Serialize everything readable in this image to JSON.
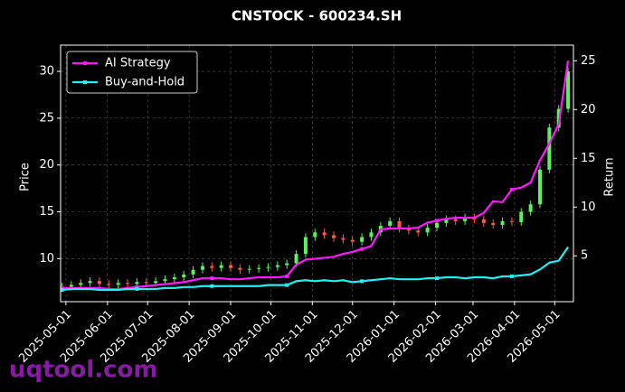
{
  "chart_data": {
    "type": "candlestick",
    "title": "CNSTOCK - 600234.SH",
    "ylabel": "Price",
    "y2label": "Return",
    "watermark": "uqtool.com",
    "x": [
      "2025-04-28",
      "2025-05-05",
      "2025-05-12",
      "2025-05-19",
      "2025-05-26",
      "2025-06-02",
      "2025-06-09",
      "2025-06-16",
      "2025-06-23",
      "2025-06-30",
      "2025-07-07",
      "2025-07-14",
      "2025-07-21",
      "2025-07-28",
      "2025-08-04",
      "2025-08-11",
      "2025-08-18",
      "2025-08-25",
      "2025-09-01",
      "2025-09-08",
      "2025-09-15",
      "2025-09-22",
      "2025-09-29",
      "2025-10-06",
      "2025-10-13",
      "2025-10-20",
      "2025-10-27",
      "2025-11-03",
      "2025-11-10",
      "2025-11-17",
      "2025-11-24",
      "2025-12-01",
      "2025-12-08",
      "2025-12-15",
      "2025-12-22",
      "2025-12-29",
      "2026-01-05",
      "2026-01-12",
      "2026-01-19",
      "2026-01-26",
      "2026-02-02",
      "2026-02-09",
      "2026-02-16",
      "2026-02-23",
      "2026-03-02",
      "2026-03-09",
      "2026-03-16",
      "2026-03-23",
      "2026-03-30",
      "2026-04-06",
      "2026-04-13",
      "2026-04-20",
      "2026-04-27",
      "2026-05-04",
      "2026-05-11"
    ],
    "open": [
      6.9,
      7.0,
      7.2,
      7.4,
      7.6,
      7.3,
      7.2,
      7.4,
      7.3,
      7.5,
      7.4,
      7.6,
      7.8,
      8.0,
      8.3,
      8.8,
      9.2,
      9.0,
      9.3,
      9.0,
      8.8,
      8.9,
      9.0,
      9.1,
      9.3,
      9.5,
      10.5,
      12.3,
      12.8,
      12.5,
      12.2,
      12.0,
      11.8,
      12.3,
      12.8,
      13.5,
      14.0,
      13.2,
      13.0,
      12.8,
      13.3,
      13.8,
      14.2,
      14.0,
      14.4,
      14.2,
      13.8,
      13.6,
      14.0,
      13.9,
      15.0,
      15.8,
      19.5,
      24.0,
      26.0
    ],
    "high": [
      7.4,
      7.6,
      7.8,
      8.0,
      8.0,
      7.7,
      7.8,
      7.8,
      7.9,
      7.9,
      8.0,
      8.2,
      8.4,
      8.7,
      9.2,
      9.6,
      9.6,
      9.7,
      9.7,
      9.4,
      9.3,
      9.4,
      9.5,
      9.7,
      9.9,
      10.9,
      12.7,
      13.2,
      13.2,
      12.9,
      12.6,
      12.4,
      12.7,
      13.2,
      13.9,
      14.4,
      14.4,
      13.6,
      13.4,
      13.7,
      14.2,
      14.6,
      14.6,
      14.8,
      14.8,
      14.6,
      14.2,
      14.4,
      14.4,
      15.4,
      16.2,
      19.9,
      24.4,
      26.4,
      30.4
    ],
    "low": [
      6.5,
      6.6,
      6.8,
      7.0,
      6.9,
      6.8,
      6.8,
      6.9,
      6.9,
      7.0,
      7.0,
      7.2,
      7.4,
      7.6,
      7.9,
      8.4,
      8.6,
      8.6,
      8.6,
      8.4,
      8.4,
      8.5,
      8.6,
      8.7,
      8.9,
      9.1,
      10.1,
      11.9,
      12.1,
      11.8,
      11.6,
      11.4,
      11.4,
      11.9,
      12.4,
      13.1,
      12.8,
      12.6,
      12.4,
      12.4,
      12.9,
      13.4,
      13.6,
      13.6,
      13.8,
      13.4,
      13.2,
      13.2,
      13.5,
      13.5,
      14.6,
      15.4,
      19.1,
      23.6,
      25.6
    ],
    "close": [
      7.0,
      7.2,
      7.4,
      7.6,
      7.3,
      7.2,
      7.4,
      7.3,
      7.5,
      7.4,
      7.6,
      7.8,
      8.0,
      8.3,
      8.8,
      9.2,
      9.0,
      9.3,
      9.0,
      8.8,
      8.9,
      9.0,
      9.1,
      9.3,
      9.5,
      10.5,
      12.3,
      12.8,
      12.5,
      12.2,
      12.0,
      11.8,
      12.3,
      12.8,
      13.5,
      14.0,
      13.2,
      13.0,
      12.8,
      13.3,
      13.8,
      14.2,
      14.0,
      14.4,
      14.2,
      13.8,
      13.6,
      14.0,
      13.9,
      15.0,
      15.8,
      19.5,
      24.0,
      26.0,
      30.0
    ],
    "up_color": "#5cf25c",
    "down_color": "#ff5a4a",
    "series": [
      {
        "name": "AI Strategy",
        "color": "#ff1aff",
        "axis": "y2",
        "values": [
          1.7,
          1.7,
          1.7,
          1.7,
          1.7,
          1.6,
          1.6,
          1.7,
          1.8,
          1.9,
          2.0,
          2.1,
          2.2,
          2.3,
          2.5,
          2.7,
          2.7,
          2.7,
          2.6,
          2.6,
          2.7,
          2.8,
          2.8,
          2.8,
          2.9,
          4.1,
          4.6,
          4.7,
          4.8,
          4.9,
          5.2,
          5.4,
          5.7,
          6.0,
          7.7,
          7.8,
          7.8,
          7.8,
          7.9,
          8.4,
          8.6,
          8.8,
          8.9,
          8.9,
          8.9,
          9.4,
          10.6,
          10.5,
          11.8,
          12.0,
          12.5,
          14.8,
          16.5,
          18.5,
          25.0
        ]
      },
      {
        "name": "Buy-and-Hold",
        "color": "#22f0f0",
        "axis": "y2",
        "values": [
          1.5,
          1.6,
          1.6,
          1.6,
          1.5,
          1.5,
          1.5,
          1.6,
          1.6,
          1.6,
          1.6,
          1.7,
          1.7,
          1.8,
          1.8,
          1.9,
          1.9,
          1.9,
          1.9,
          1.9,
          1.9,
          1.9,
          2.0,
          2.0,
          2.0,
          2.4,
          2.5,
          2.4,
          2.5,
          2.4,
          2.5,
          2.3,
          2.4,
          2.5,
          2.6,
          2.7,
          2.6,
          2.6,
          2.6,
          2.7,
          2.7,
          2.8,
          2.8,
          2.7,
          2.8,
          2.8,
          2.7,
          2.9,
          2.9,
          3.0,
          3.1,
          3.6,
          4.3,
          4.5,
          5.9
        ]
      }
    ],
    "xlim": [
      "2025-04-27",
      "2026-05-15"
    ],
    "xticks": [
      "2025-05-01",
      "2025-06-01",
      "2025-07-01",
      "2025-08-01",
      "2025-09-01",
      "2025-10-01",
      "2025-11-01",
      "2025-12-01",
      "2026-01-01",
      "2026-02-01",
      "2026-03-01",
      "2026-04-01",
      "2026-05-01"
    ],
    "ylim": [
      5.4,
      32.8
    ],
    "yticks": [
      10,
      15,
      20,
      25,
      30
    ],
    "y2lim": [
      0.3,
      26.6
    ],
    "y2ticks": [
      5,
      10,
      15,
      20,
      25
    ],
    "grid": true,
    "legend": "upper left"
  }
}
